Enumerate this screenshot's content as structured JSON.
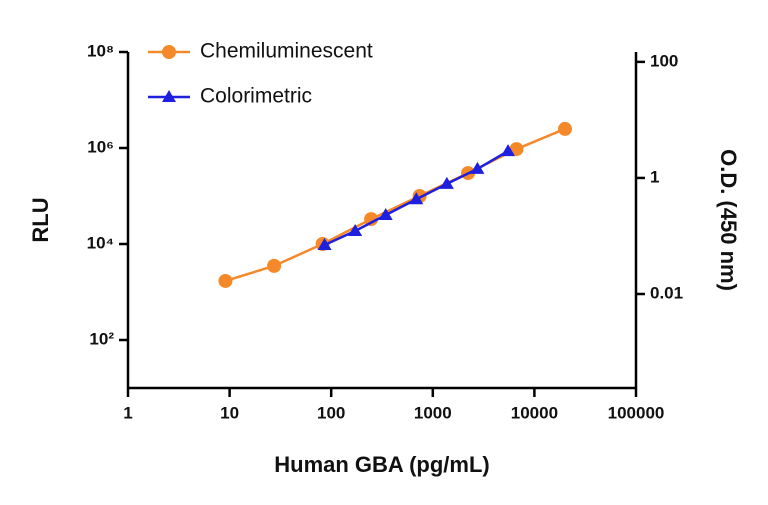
{
  "chart_data": {
    "type": "line",
    "x_label": "Human GBA (pg/mL)",
    "y_label": "RLU",
    "y2_label": "O.D. (450 nm)",
    "log_x": true,
    "log_y": true,
    "log_y2": true,
    "xlim": [
      1,
      100000
    ],
    "xticks": [
      1,
      10,
      100,
      1000,
      10000,
      100000
    ],
    "ylim": [
      10,
      100000000
    ],
    "yticks": [
      {
        "value": 100,
        "label": "10²"
      },
      {
        "value": 10000,
        "label": "10⁴"
      },
      {
        "value": 1000000,
        "label": "10⁶"
      },
      {
        "value": 100000000,
        "label": "10⁸"
      }
    ],
    "y2lim": [
      0.00024,
      148
    ],
    "y2ticks": [
      0.01,
      1,
      100
    ],
    "legend": "top-left",
    "series": [
      {
        "name": "Chemiluminescent",
        "color": "#f5892a",
        "marker": "circle",
        "x": [
          9.1,
          27.4,
          82.3,
          247,
          741,
          2222,
          6667,
          20000
        ],
        "values": [
          1700,
          3500,
          10000,
          33000,
          100000,
          300000,
          950000,
          2500000
        ]
      },
      {
        "name": "Colorimetric",
        "color": "#1f1fe0",
        "marker": "triangle",
        "axis": "y2",
        "x": [
          86,
          172,
          344,
          688,
          1375,
          2750,
          5500
        ],
        "values": [
          0.07,
          0.122,
          0.23,
          0.43,
          0.79,
          1.43,
          2.9
        ]
      }
    ]
  }
}
